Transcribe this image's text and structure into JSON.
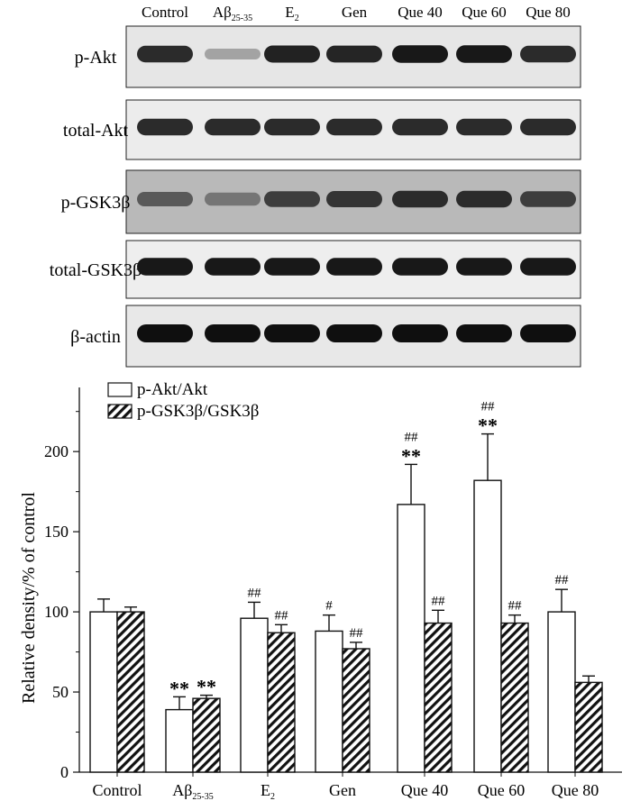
{
  "blot": {
    "lanes": [
      {
        "text": "Control",
        "sub": ""
      },
      {
        "text": "Aβ",
        "sub": "25-35"
      },
      {
        "text": "E",
        "sub": "2"
      },
      {
        "text": "Gen",
        "sub": ""
      },
      {
        "text": "Que 40",
        "sub": ""
      },
      {
        "text": "Que 60",
        "sub": ""
      },
      {
        "text": "Que 80",
        "sub": ""
      }
    ],
    "rows": [
      {
        "label": "p-Akt",
        "background": "#e6e6e6",
        "band_intensity": [
          0.85,
          0.2,
          0.9,
          0.88,
          0.95,
          0.95,
          0.85
        ]
      },
      {
        "label": "total-Akt",
        "background": "#ececec",
        "band_intensity": [
          0.85,
          0.85,
          0.85,
          0.85,
          0.85,
          0.85,
          0.85
        ]
      },
      {
        "label": "p-GSK3β",
        "background": "#b9b9b9",
        "band_intensity": [
          0.6,
          0.45,
          0.75,
          0.8,
          0.85,
          0.85,
          0.75
        ]
      },
      {
        "label": "total-GSK3β",
        "background": "#eeeeee",
        "band_intensity": [
          0.95,
          0.95,
          0.95,
          0.95,
          0.95,
          0.95,
          0.95
        ]
      },
      {
        "label": "β-actin",
        "background": "#e8e8e8",
        "band_intensity": [
          1.0,
          1.0,
          1.0,
          1.0,
          1.0,
          1.0,
          1.0
        ]
      }
    ]
  },
  "chart_data": {
    "type": "bar",
    "categories": [
      {
        "text": "Control",
        "sub": ""
      },
      {
        "text": "Aβ",
        "sub": "25-35"
      },
      {
        "text": "E",
        "sub": "2"
      },
      {
        "text": "Gen",
        "sub": ""
      },
      {
        "text": "Que 40",
        "sub": ""
      },
      {
        "text": "Que 60",
        "sub": ""
      },
      {
        "text": "Que 80",
        "sub": ""
      }
    ],
    "series": [
      {
        "name": "p-Akt/Akt",
        "fill": "open",
        "values": [
          100,
          39,
          96,
          88,
          167,
          182,
          100
        ],
        "errors": [
          8,
          8,
          10,
          10,
          25,
          29,
          14
        ],
        "annotations": [
          {
            "hash": "",
            "star": ""
          },
          {
            "hash": "",
            "star": "**"
          },
          {
            "hash": "##",
            "star": ""
          },
          {
            "hash": "#",
            "star": ""
          },
          {
            "hash": "##",
            "star": "**"
          },
          {
            "hash": "##",
            "star": "**"
          },
          {
            "hash": "##",
            "star": ""
          }
        ]
      },
      {
        "name": "p-GSK3β/GSK3β",
        "fill": "hatched",
        "values": [
          100,
          46,
          87,
          77,
          93,
          93,
          56
        ],
        "errors": [
          3,
          2,
          5,
          4,
          8,
          5,
          4
        ],
        "annotations": [
          {
            "hash": "",
            "star": ""
          },
          {
            "hash": "",
            "star": "**"
          },
          {
            "hash": "##",
            "star": ""
          },
          {
            "hash": "##",
            "star": ""
          },
          {
            "hash": "##",
            "star": ""
          },
          {
            "hash": "##",
            "star": ""
          },
          {
            "hash": "",
            "star": ""
          }
        ]
      }
    ],
    "ylabel": "Relative density/% of control",
    "ylim": [
      0,
      240
    ],
    "yticks": [
      "0",
      "50",
      "100",
      "150",
      "200"
    ],
    "ytick_values": [
      0,
      50,
      100,
      150,
      200
    ],
    "legend_position": "top-left",
    "grid": false
  }
}
